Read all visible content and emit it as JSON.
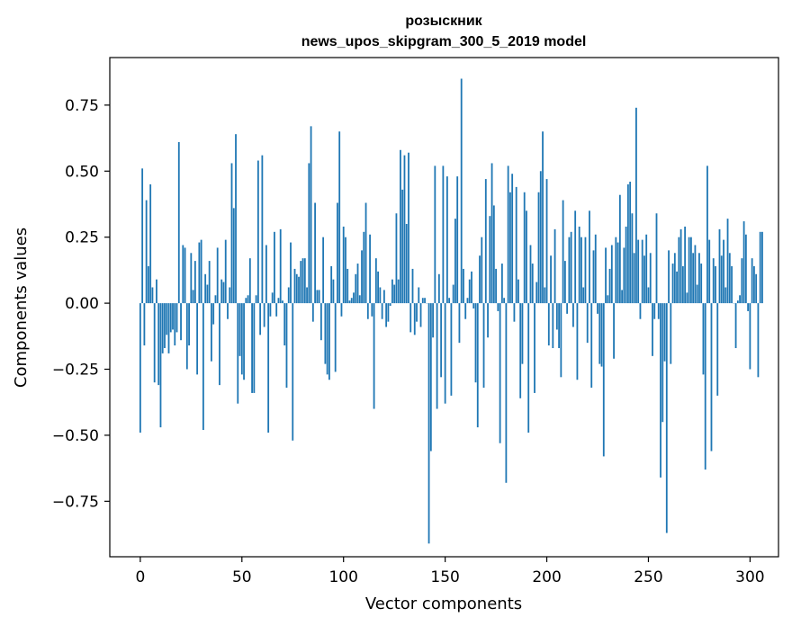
{
  "chart_data": {
    "type": "bar",
    "title_line1": "розыскник",
    "title_line2": "news_upos_skipgram_300_5_2019 model",
    "xlabel": "Vector components",
    "ylabel": "Components values",
    "xlim": [
      -15,
      314
    ],
    "ylim": [
      -0.96,
      0.93
    ],
    "xticks": [
      0,
      50,
      100,
      150,
      200,
      250,
      300
    ],
    "xtick_labels": [
      "0",
      "50",
      "100",
      "150",
      "200",
      "250",
      "300"
    ],
    "yticks": [
      -0.75,
      -0.5,
      -0.25,
      0.0,
      0.25,
      0.5,
      0.75
    ],
    "ytick_labels": [
      "−0.75",
      "−0.50",
      "−0.25",
      "0.00",
      "0.25",
      "0.50",
      "0.75"
    ],
    "bar_color": "#1f77b4",
    "values": [
      -0.49,
      0.51,
      -0.16,
      0.39,
      0.14,
      0.45,
      0.06,
      -0.3,
      0.09,
      -0.31,
      -0.47,
      -0.19,
      -0.17,
      -0.12,
      -0.19,
      -0.11,
      -0.1,
      -0.16,
      -0.11,
      0.61,
      -0.14,
      0.22,
      0.21,
      -0.25,
      -0.16,
      0.19,
      0.05,
      0.16,
      -0.27,
      0.23,
      0.24,
      -0.48,
      0.11,
      0.07,
      0.16,
      -0.22,
      -0.08,
      0.03,
      0.21,
      -0.31,
      0.09,
      0.08,
      0.24,
      -0.06,
      0.06,
      0.53,
      0.36,
      0.64,
      -0.38,
      -0.2,
      -0.27,
      -0.29,
      0.02,
      0.03,
      0.17,
      -0.34,
      -0.34,
      0.03,
      0.54,
      -0.12,
      0.56,
      -0.09,
      0.22,
      -0.49,
      -0.05,
      0.04,
      0.27,
      -0.05,
      0.02,
      0.28,
      0.01,
      -0.16,
      -0.32,
      0.06,
      0.23,
      -0.52,
      0.13,
      0.11,
      0.1,
      0.16,
      0.17,
      0.17,
      0.06,
      0.53,
      0.67,
      -0.07,
      0.38,
      0.05,
      0.05,
      -0.14,
      0.25,
      -0.23,
      -0.27,
      -0.29,
      0.14,
      0.09,
      -0.26,
      0.38,
      0.65,
      -0.05,
      0.29,
      0.25,
      0.13,
      0.01,
      0.02,
      0.04,
      0.11,
      0.15,
      0.03,
      0.2,
      0.27,
      0.38,
      -0.06,
      0.26,
      -0.05,
      -0.4,
      0.17,
      0.12,
      0.06,
      -0.06,
      0.05,
      -0.09,
      -0.07,
      -0.01,
      0.09,
      0.07,
      0.34,
      0.09,
      0.58,
      0.43,
      0.56,
      0.3,
      0.57,
      -0.11,
      0.13,
      -0.12,
      -0.07,
      0.06,
      -0.09,
      0.02,
      0.02,
      0.0,
      -0.91,
      -0.56,
      -0.13,
      0.52,
      -0.4,
      0.11,
      -0.28,
      0.52,
      -0.38,
      0.48,
      0.02,
      -0.35,
      0.07,
      0.32,
      0.48,
      -0.15,
      0.85,
      0.13,
      -0.06,
      0.02,
      0.09,
      0.12,
      -0.02,
      -0.3,
      -0.47,
      0.18,
      0.25,
      -0.32,
      0.47,
      -0.13,
      0.33,
      0.53,
      0.37,
      0.13,
      -0.03,
      -0.53,
      0.15,
      0.02,
      -0.68,
      0.52,
      0.42,
      0.49,
      -0.07,
      0.44,
      0.09,
      -0.36,
      -0.23,
      0.42,
      0.35,
      -0.49,
      0.22,
      0.15,
      -0.34,
      0.08,
      0.42,
      0.5,
      0.65,
      0.06,
      0.47,
      -0.16,
      0.18,
      -0.17,
      0.28,
      -0.1,
      -0.17,
      -0.28,
      0.39,
      0.16,
      -0.04,
      0.25,
      0.27,
      -0.09,
      0.35,
      -0.29,
      0.29,
      0.25,
      0.06,
      0.25,
      -0.15,
      0.35,
      -0.32,
      0.2,
      0.26,
      -0.04,
      -0.23,
      -0.24,
      -0.58,
      0.21,
      0.03,
      0.13,
      0.22,
      -0.21,
      0.25,
      0.23,
      0.41,
      0.05,
      0.21,
      0.29,
      0.45,
      0.46,
      0.34,
      0.19,
      0.74,
      0.24,
      -0.06,
      0.24,
      0.18,
      0.26,
      0.06,
      0.19,
      -0.2,
      -0.06,
      0.34,
      -0.06,
      -0.66,
      -0.45,
      -0.22,
      -0.87,
      0.2,
      -0.23,
      0.15,
      0.19,
      0.12,
      0.25,
      0.28,
      0.14,
      0.29,
      0.04,
      0.25,
      0.25,
      0.19,
      0.22,
      0.07,
      0.19,
      0.15,
      -0.27,
      -0.63,
      0.52,
      0.24,
      -0.56,
      0.17,
      0.14,
      -0.35,
      0.28,
      0.18,
      0.24,
      0.06,
      0.32,
      0.19,
      0.14,
      0.0,
      -0.17,
      0.01,
      0.03,
      0.17,
      0.31,
      0.26,
      -0.03,
      -0.25,
      0.17,
      0.14,
      0.11,
      -0.28,
      0.27,
      0.27
    ]
  }
}
